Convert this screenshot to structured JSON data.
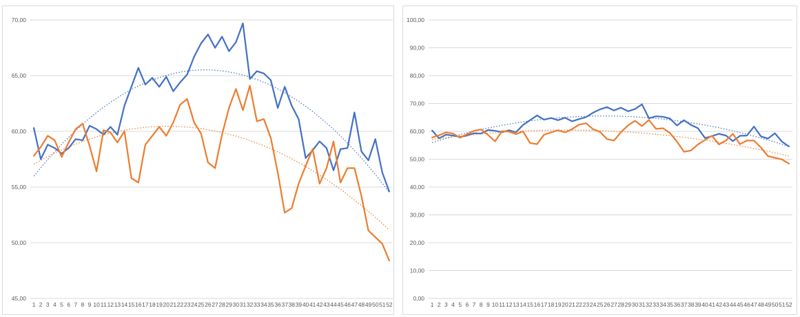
{
  "colors": {
    "series_a": "#4472c4",
    "series_b": "#ed7d31",
    "grid": "#d9d9d9",
    "tick_text": "#595959"
  },
  "chart_data": [
    {
      "type": "line",
      "x": [
        1,
        2,
        3,
        4,
        5,
        6,
        7,
        8,
        9,
        10,
        11,
        12,
        13,
        14,
        15,
        16,
        17,
        18,
        19,
        20,
        21,
        22,
        23,
        24,
        25,
        26,
        27,
        28,
        29,
        30,
        31,
        32,
        33,
        34,
        35,
        36,
        37,
        38,
        39,
        40,
        41,
        42,
        43,
        44,
        45,
        46,
        47,
        48,
        49,
        50,
        51,
        52
      ],
      "ylim": [
        45,
        70
      ],
      "yticks": [
        "45,00",
        "50,00",
        "55,00",
        "60,00",
        "65,00",
        "70,00"
      ],
      "grid": true,
      "trendlines": "polynomial, dotted",
      "series": [
        {
          "color": "#4472c4",
          "values": [
            60.3,
            57.5,
            58.8,
            58.5,
            58.0,
            58.5,
            59.3,
            59.2,
            60.5,
            60.2,
            59.7,
            60.4,
            59.7,
            62.3,
            64.0,
            65.7,
            64.2,
            64.8,
            64.0,
            64.9,
            63.6,
            64.4,
            65.1,
            66.7,
            67.9,
            68.7,
            67.5,
            68.5,
            67.2,
            68.0,
            69.7,
            64.7,
            65.4,
            65.2,
            64.6,
            62.1,
            64.0,
            62.3,
            61.1,
            57.6,
            58.3,
            59.1,
            58.5,
            56.5,
            58.4,
            58.5,
            61.7,
            58.2,
            57.4,
            59.3,
            56.3,
            54.6
          ]
        },
        {
          "color": "#ed7d31",
          "values": [
            57.8,
            58.6,
            59.6,
            59.2,
            57.7,
            59.0,
            60.2,
            60.7,
            58.7,
            56.4,
            60.1,
            59.9,
            59.0,
            60.0,
            55.8,
            55.4,
            58.8,
            59.6,
            60.4,
            59.6,
            60.8,
            62.4,
            62.9,
            60.8,
            59.8,
            57.2,
            56.7,
            59.7,
            62.1,
            63.8,
            61.9,
            64.1,
            60.9,
            61.1,
            59.4,
            56.3,
            52.7,
            53.1,
            55.3,
            56.9,
            58.4,
            55.3,
            56.7,
            59.1,
            55.4,
            56.7,
            56.7,
            54.2,
            51.1,
            50.5,
            49.9,
            48.4
          ]
        }
      ]
    },
    {
      "type": "line",
      "x": [
        1,
        2,
        3,
        4,
        5,
        6,
        7,
        8,
        9,
        10,
        11,
        12,
        13,
        14,
        15,
        16,
        17,
        18,
        19,
        20,
        21,
        22,
        23,
        24,
        25,
        26,
        27,
        28,
        29,
        30,
        31,
        32,
        33,
        34,
        35,
        36,
        37,
        38,
        39,
        40,
        41,
        42,
        43,
        44,
        45,
        46,
        47,
        48,
        49,
        50,
        51,
        52
      ],
      "ylim": [
        0,
        100
      ],
      "yticks": [
        "0,00",
        "10,00",
        "20,00",
        "30,00",
        "40,00",
        "50,00",
        "60,00",
        "70,00",
        "80,00",
        "90,00",
        "100,00"
      ],
      "grid": true,
      "trendlines": "polynomial, dotted",
      "series": [
        {
          "color": "#4472c4",
          "values": [
            60.3,
            57.5,
            58.8,
            58.5,
            58.0,
            58.5,
            59.3,
            59.2,
            60.5,
            60.2,
            59.7,
            60.4,
            59.7,
            62.3,
            64.0,
            65.7,
            64.2,
            64.8,
            64.0,
            64.9,
            63.6,
            64.4,
            65.1,
            66.7,
            67.9,
            68.7,
            67.5,
            68.5,
            67.2,
            68.0,
            69.7,
            64.7,
            65.4,
            65.2,
            64.6,
            62.1,
            64.0,
            62.3,
            61.1,
            57.6,
            58.3,
            59.1,
            58.5,
            56.5,
            58.4,
            58.5,
            61.7,
            58.2,
            57.4,
            59.3,
            56.3,
            54.6
          ]
        },
        {
          "color": "#ed7d31",
          "values": [
            57.8,
            58.6,
            59.6,
            59.2,
            57.7,
            59.0,
            60.2,
            60.7,
            58.7,
            56.4,
            60.1,
            59.9,
            59.0,
            60.0,
            55.8,
            55.4,
            58.8,
            59.6,
            60.4,
            59.6,
            60.8,
            62.4,
            62.9,
            60.8,
            59.8,
            57.2,
            56.7,
            59.7,
            62.1,
            63.8,
            61.9,
            64.1,
            60.9,
            61.1,
            59.4,
            56.3,
            52.7,
            53.1,
            55.3,
            56.9,
            58.4,
            55.3,
            56.7,
            59.1,
            55.4,
            56.7,
            56.7,
            54.2,
            51.1,
            50.5,
            49.9,
            48.4
          ]
        }
      ]
    }
  ]
}
